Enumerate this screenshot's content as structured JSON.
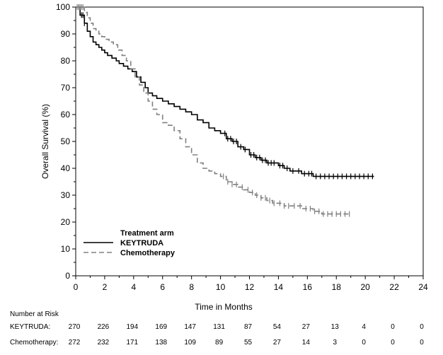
{
  "chart_data": {
    "type": "line",
    "subtype": "kaplan-meier",
    "xlabel": "Time in Months",
    "ylabel": "Overall Survival (%)",
    "xlim": [
      0,
      24
    ],
    "ylim": [
      0,
      100
    ],
    "xticks": [
      0,
      2,
      4,
      6,
      8,
      10,
      12,
      14,
      16,
      18,
      20,
      22,
      24
    ],
    "yticks": [
      0,
      10,
      20,
      30,
      40,
      50,
      60,
      70,
      80,
      90,
      100
    ],
    "legend": {
      "title": "Treatment arm",
      "position": "bottom-left",
      "entries": [
        "KEYTRUDA",
        "Chemotherapy"
      ]
    },
    "series": [
      {
        "name": "KEYTRUDA",
        "color": "#000000",
        "style": "solid",
        "x": [
          0,
          0.3,
          0.6,
          0.8,
          1.0,
          1.2,
          1.4,
          1.6,
          1.8,
          2.0,
          2.2,
          2.5,
          2.8,
          3.0,
          3.3,
          3.6,
          3.9,
          4.2,
          4.5,
          4.8,
          5.0,
          5.3,
          5.6,
          6.0,
          6.4,
          6.8,
          7.2,
          7.6,
          8.0,
          8.4,
          8.8,
          9.2,
          9.6,
          10.0,
          10.4,
          10.8,
          11.2,
          11.6,
          12.0,
          12.4,
          12.8,
          13.2,
          13.6,
          14.0,
          14.4,
          14.8,
          15.2,
          15.6,
          16.0,
          16.4,
          17.0,
          18.0,
          19.0,
          20.0,
          20.6
        ],
        "y": [
          100,
          97,
          94,
          91,
          89,
          87,
          86,
          85,
          84,
          83,
          82,
          81,
          80,
          79,
          78,
          77,
          76,
          74,
          72,
          70,
          68,
          67,
          66,
          65,
          64,
          63,
          62,
          61,
          60,
          58,
          57,
          55,
          54,
          53,
          51,
          50,
          48,
          47,
          45,
          44,
          43,
          42,
          42,
          41,
          40,
          39,
          39,
          38,
          38,
          37,
          37,
          37,
          37,
          37,
          37
        ],
        "censor_x": [
          0.2,
          0.4,
          0.5,
          0.6,
          10.3,
          10.5,
          10.7,
          10.9,
          11.1,
          11.4,
          11.7,
          12.1,
          12.3,
          12.5,
          12.7,
          12.9,
          13.1,
          13.3,
          13.5,
          13.7,
          14.1,
          14.3,
          14.6,
          15.0,
          15.4,
          15.8,
          16.1,
          16.3,
          16.6,
          16.9,
          17.2,
          17.5,
          17.8,
          18.1,
          18.4,
          18.7,
          19.0,
          19.3,
          19.6,
          19.9,
          20.2,
          20.5
        ]
      },
      {
        "name": "Chemotherapy",
        "color": "#808080",
        "style": "dashed",
        "x": [
          0,
          0.6,
          0.8,
          1.0,
          1.2,
          1.4,
          1.6,
          1.8,
          2.0,
          2.3,
          2.6,
          2.9,
          3.2,
          3.5,
          3.8,
          4.1,
          4.4,
          4.7,
          5.0,
          5.3,
          5.6,
          6.0,
          6.4,
          6.8,
          7.2,
          7.6,
          8.0,
          8.4,
          8.8,
          9.2,
          9.6,
          10.0,
          10.4,
          10.8,
          11.2,
          11.6,
          12.0,
          12.4,
          12.8,
          13.2,
          13.6,
          14.0,
          14.4,
          14.8,
          15.2,
          15.6,
          16.0,
          16.4,
          17.0,
          18.0,
          19.0
        ],
        "y": [
          100,
          98,
          96,
          94,
          92,
          91,
          90,
          89,
          88,
          87,
          86,
          84,
          82,
          80,
          77,
          74,
          71,
          68,
          65,
          62,
          60,
          57,
          56,
          54,
          51,
          48,
          45,
          42,
          40,
          39,
          38,
          37,
          35,
          34,
          33,
          32,
          31,
          30,
          29,
          28,
          27,
          27,
          26,
          26,
          26,
          25,
          25,
          24,
          23,
          23,
          23
        ],
        "censor_x": [
          0.1,
          0.2,
          0.3,
          0.4,
          0.5,
          10.2,
          10.5,
          10.8,
          11.1,
          11.5,
          11.9,
          12.2,
          12.5,
          12.8,
          13.1,
          13.4,
          13.7,
          14.1,
          14.4,
          14.7,
          15.1,
          15.5,
          15.9,
          16.2,
          16.5,
          16.8,
          17.1,
          17.4,
          17.7,
          18.0,
          18.3,
          18.6,
          18.9
        ]
      }
    ],
    "risk_table": {
      "title": "Number at Risk",
      "times": [
        0,
        2,
        4,
        6,
        8,
        10,
        12,
        14,
        16,
        18,
        20,
        22,
        24
      ],
      "rows": [
        {
          "label": "KEYTRUDA:",
          "values": [
            270,
            226,
            194,
            169,
            147,
            131,
            87,
            54,
            27,
            13,
            4,
            0,
            0
          ]
        },
        {
          "label": "Chemotherapy:",
          "values": [
            272,
            232,
            171,
            138,
            109,
            89,
            55,
            27,
            14,
            3,
            0,
            0,
            0
          ]
        }
      ]
    }
  }
}
